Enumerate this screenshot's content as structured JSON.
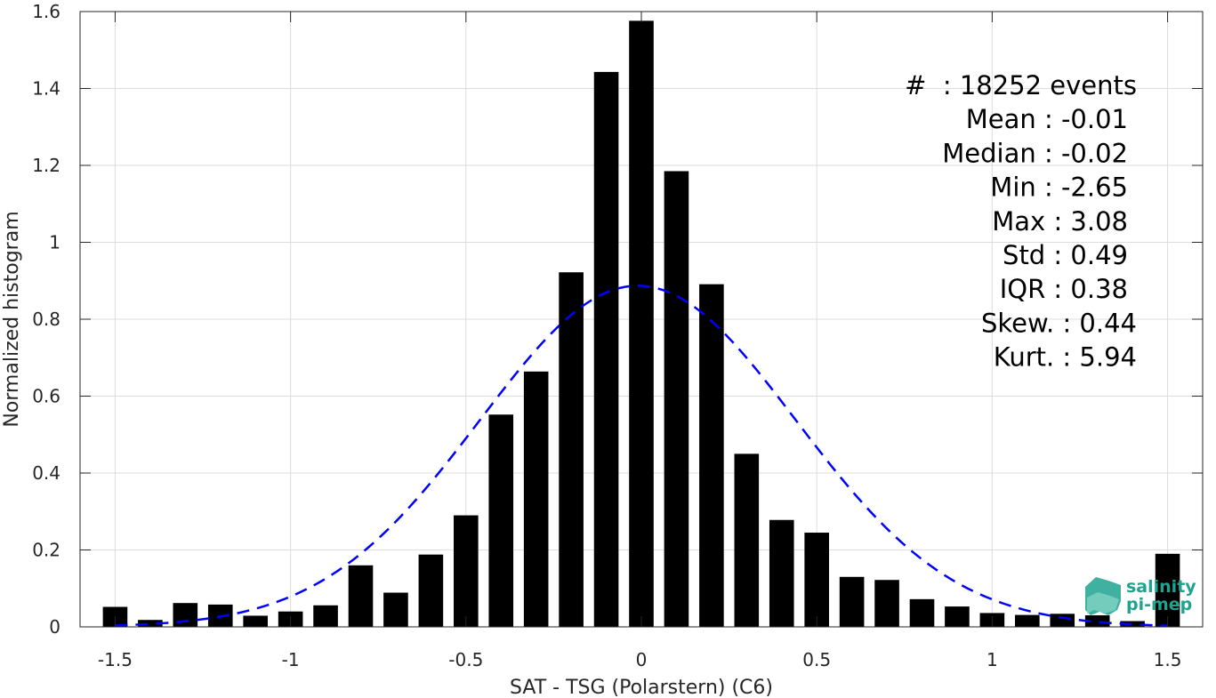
{
  "chart_data": {
    "type": "bar",
    "xlabel": "SAT - TSG (Polarstern) (C6)",
    "ylabel": "Normalized histogram",
    "xlim": [
      -1.6,
      1.6
    ],
    "ylim": [
      0,
      1.6
    ],
    "grid": true,
    "xticks": [
      -1.5,
      -1,
      -0.5,
      0,
      0.5,
      1,
      1.5
    ],
    "xtick_labels": [
      "-1.5",
      "-1",
      "-0.5",
      "0",
      "0.5",
      "1",
      "1.5"
    ],
    "yticks": [
      0,
      0.2,
      0.4,
      0.6,
      0.8,
      1,
      1.2,
      1.4,
      1.6
    ],
    "ytick_labels": [
      "0",
      "0.2",
      "0.4",
      "0.6",
      "0.8",
      "1",
      "1.2",
      "1.4",
      "1.6"
    ],
    "bar_width": 0.07,
    "bar_color": "#000000",
    "x": [
      -1.5,
      -1.4,
      -1.3,
      -1.2,
      -1.1,
      -1.0,
      -0.9,
      -0.8,
      -0.7,
      -0.6,
      -0.5,
      -0.4,
      -0.3,
      -0.2,
      -0.1,
      0.0,
      0.1,
      0.2,
      0.3,
      0.4,
      0.5,
      0.6,
      0.7,
      0.8,
      0.9,
      1.0,
      1.1,
      1.2,
      1.3,
      1.4,
      1.5
    ],
    "values": [
      0.052,
      0.018,
      0.062,
      0.058,
      0.029,
      0.04,
      0.056,
      0.16,
      0.089,
      0.188,
      0.29,
      0.552,
      0.664,
      0.922,
      1.443,
      1.576,
      1.185,
      0.891,
      0.45,
      0.278,
      0.245,
      0.13,
      0.122,
      0.072,
      0.053,
      0.036,
      0.031,
      0.034,
      0.03,
      0.015,
      0.19
    ],
    "fit_curve": {
      "type": "gaussian",
      "style": "dashed",
      "color": "#0000ff",
      "mean": -0.01,
      "std": 0.45,
      "amplitude": 0.887,
      "xrange": [
        -1.5,
        1.5
      ]
    },
    "stats": [
      "#  : 18252 events",
      "Mean : -0.01",
      "Median : -0.02",
      "Min : -2.65",
      "Max : 3.08",
      "Std : 0.49",
      "IQR : 0.38",
      "Skew. : 0.44",
      "Kurt. : 5.94"
    ]
  },
  "logo": {
    "line1": "salinity",
    "line2": "pi-mep"
  }
}
